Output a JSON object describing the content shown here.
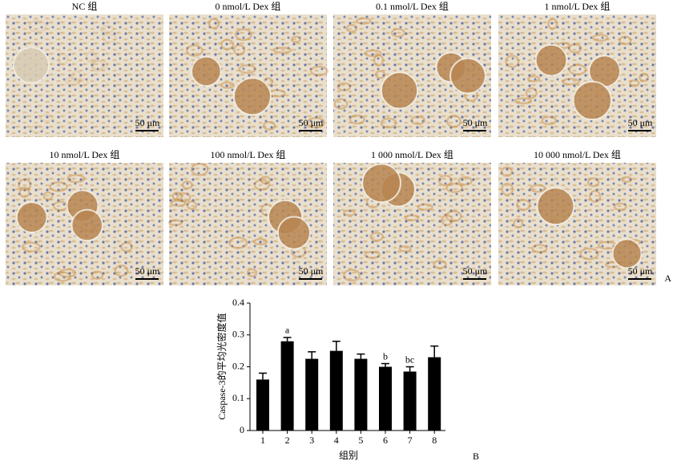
{
  "panel_a": {
    "label": "A",
    "scale_label": "50 μm",
    "titles": [
      "NC 组",
      "0 nmol/L Dex 组",
      "0.1 nmol/L Dex 组",
      "1 nmol/L Dex 组",
      "10 nmol/L Dex 组",
      "100 nmol/L Dex 组",
      "1 000 nmol/L Dex 组",
      "10 000 nmol/L Dex 组"
    ]
  },
  "chart_data": {
    "type": "bar",
    "panel_label": "B",
    "x_label": "组别",
    "y_label": "Caspase-3的平均光密度值",
    "categories": [
      "1",
      "2",
      "3",
      "4",
      "5",
      "6",
      "7",
      "8"
    ],
    "values": [
      0.16,
      0.28,
      0.225,
      0.25,
      0.225,
      0.2,
      0.185,
      0.23
    ],
    "errors": [
      0.02,
      0.012,
      0.022,
      0.03,
      0.015,
      0.01,
      0.015,
      0.035
    ],
    "bar_labels": [
      null,
      "a",
      null,
      null,
      null,
      "b",
      "bc",
      null
    ],
    "color": "#000000",
    "ylim": [
      0,
      0.4
    ],
    "yticks": [
      0,
      0.1,
      0.2,
      0.3,
      0.4
    ]
  }
}
